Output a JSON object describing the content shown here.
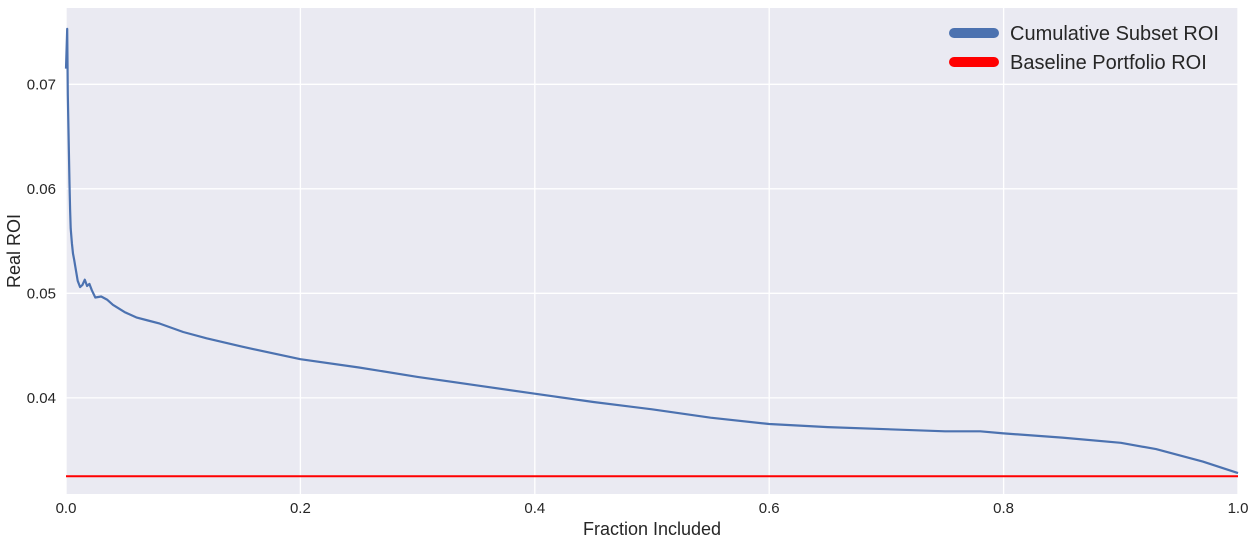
{
  "chart_data": {
    "type": "line",
    "title": "",
    "xlabel": "Fraction Included",
    "ylabel": "Real ROI",
    "xlim": [
      0.0,
      1.0
    ],
    "ylim": [
      0.0308,
      0.0773
    ],
    "x_ticks": [
      {
        "value": 0.0,
        "label": "0.0"
      },
      {
        "value": 0.2,
        "label": "0.2"
      },
      {
        "value": 0.4,
        "label": "0.4"
      },
      {
        "value": 0.6,
        "label": "0.6"
      },
      {
        "value": 0.8,
        "label": "0.8"
      },
      {
        "value": 1.0,
        "label": "1.0"
      }
    ],
    "y_ticks": [
      {
        "value": 0.04,
        "label": "0.04"
      },
      {
        "value": 0.05,
        "label": "0.05"
      },
      {
        "value": 0.06,
        "label": "0.06"
      },
      {
        "value": 0.07,
        "label": "0.07"
      }
    ],
    "grid": true,
    "background": "#eaeaf2",
    "grid_color": "#ffffff",
    "legend_position": "top-right",
    "series": [
      {
        "name": "Cumulative Subset ROI",
        "color": "#4c72b0",
        "style": "line",
        "x": [
          0.0,
          0.001,
          0.0015,
          0.002,
          0.0025,
          0.003,
          0.0035,
          0.004,
          0.005,
          0.006,
          0.007,
          0.008,
          0.01,
          0.012,
          0.014,
          0.016,
          0.018,
          0.02,
          0.022,
          0.025,
          0.03,
          0.035,
          0.04,
          0.05,
          0.06,
          0.07,
          0.08,
          0.1,
          0.12,
          0.15,
          0.2,
          0.25,
          0.3,
          0.35,
          0.4,
          0.45,
          0.5,
          0.55,
          0.6,
          0.65,
          0.7,
          0.75,
          0.78,
          0.8,
          0.85,
          0.9,
          0.93,
          0.95,
          0.97,
          1.0
        ],
        "y": [
          0.0715,
          0.0753,
          0.069,
          0.0665,
          0.0635,
          0.0605,
          0.058,
          0.0562,
          0.0548,
          0.0538,
          0.0532,
          0.0525,
          0.0512,
          0.0506,
          0.0508,
          0.0513,
          0.0507,
          0.0509,
          0.0503,
          0.0496,
          0.0497,
          0.0494,
          0.0489,
          0.0482,
          0.0477,
          0.0474,
          0.0471,
          0.0463,
          0.0457,
          0.0449,
          0.0437,
          0.0429,
          0.042,
          0.0412,
          0.0404,
          0.0396,
          0.0389,
          0.0381,
          0.0375,
          0.0372,
          0.037,
          0.0368,
          0.0368,
          0.0366,
          0.0362,
          0.0357,
          0.0351,
          0.0345,
          0.0339,
          0.0328
        ]
      },
      {
        "name": "Baseline Portfolio ROI",
        "color": "#ff0000",
        "style": "hline",
        "x": [
          0.0,
          1.0
        ],
        "y": [
          0.0325,
          0.0325
        ]
      }
    ]
  }
}
